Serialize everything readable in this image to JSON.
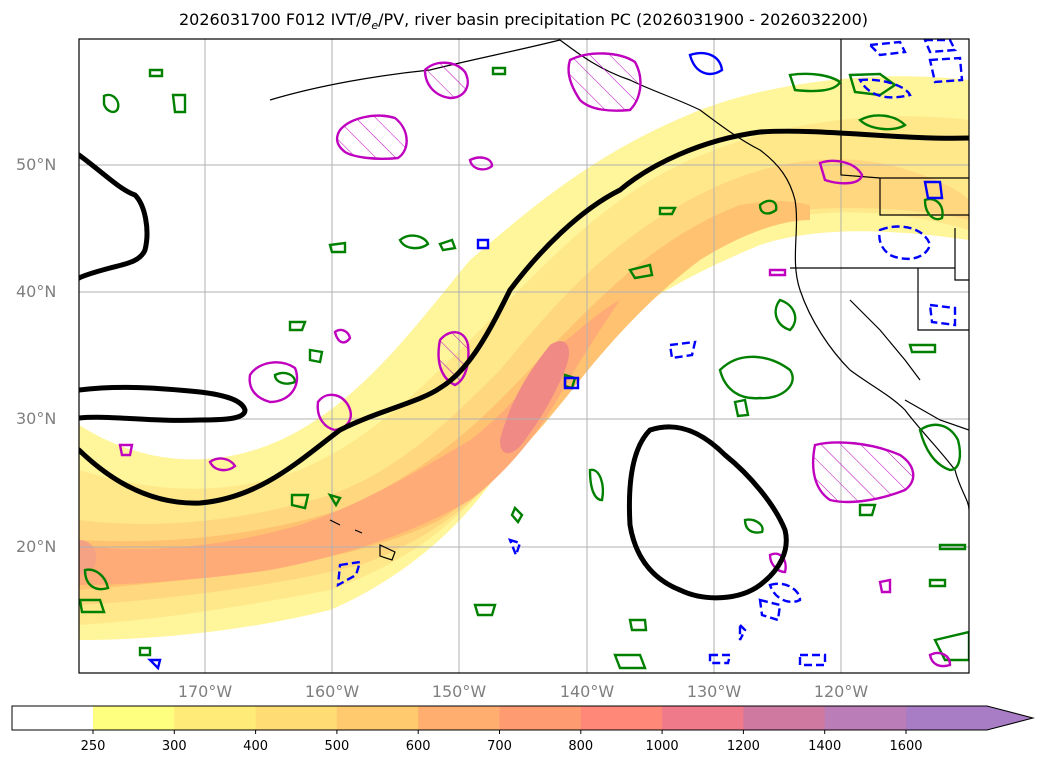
{
  "title": "2026031700 F012 IVT/θe/PV, river basin precipitation PC (2026031900 - 2026032200)",
  "title_parts": {
    "before": "2026031700 F012 IVT/",
    "theta": "θ",
    "theta_sub": "e",
    "after": "/PV, river basin precipitation PC (2026031900 - 2026032200)"
  },
  "lat_labels": [
    "50°N",
    "40°N",
    "30°N",
    "20°N"
  ],
  "lon_labels": [
    "170°W",
    "160°W",
    "150°W",
    "140°W",
    "130°W",
    "120°W"
  ],
  "colorbar": {
    "ticks": [
      "250",
      "300",
      "400",
      "500",
      "600",
      "700",
      "800",
      "1000",
      "1200",
      "1400",
      "1600"
    ],
    "colors": [
      "#ffff7f",
      "#ffeb77",
      "#ffdc74",
      "#ffc96e",
      "#ffae6f",
      "#ff9b70",
      "#ff8878",
      "#ee7a8a",
      "#cf79a0",
      "#bb7db8",
      "#a97dc6"
    ]
  },
  "colors": {
    "ivt_low": "#fff59a",
    "ivt_mid": "#ffd77e",
    "ivt_high": "#ffa978",
    "ivt_core": "#f08a84",
    "pv_contour": "#000000",
    "theta_green": "#008000",
    "theta_blue": "#0000ff",
    "precip_magenta": "#bf00bf",
    "grid": "#b0b0b0",
    "coast": "#000000"
  }
}
